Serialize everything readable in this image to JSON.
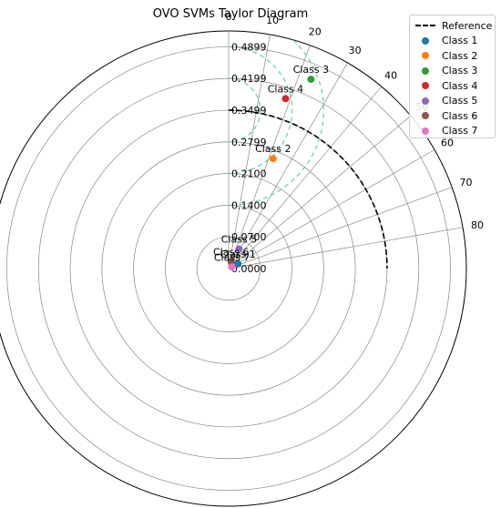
{
  "chart_data": {
    "type": "scatter",
    "subtype": "taylor-diagram",
    "title": "OVO SVMs Taylor Diagram",
    "angle_axis": {
      "quantity": "angle (degrees)",
      "range": [
        0,
        90
      ],
      "ticks": [
        "0",
        "10",
        "20",
        "30",
        "40",
        "50",
        "60",
        "70",
        "80"
      ]
    },
    "radial_axis": {
      "quantity": "standard deviation",
      "range": [
        0,
        0.525
      ],
      "ticks": [
        "0.0000",
        "0.0700",
        "0.1400",
        "0.2100",
        "0.2799",
        "0.3499",
        "0.4199",
        "0.4899"
      ],
      "tick_values": [
        0,
        0.07,
        0.14,
        0.21,
        0.2799,
        0.3499,
        0.4199,
        0.4899
      ]
    },
    "reference": {
      "name": "Reference",
      "std": 0.3499,
      "color": "#000000",
      "centered_rms_contours": [
        0.07,
        0.14,
        0.21
      ],
      "contour_color": "#5fd38d"
    },
    "grid": true,
    "legend_placement": "top-right",
    "series": [
      {
        "name": "Class 1",
        "label": "Class 1",
        "angle": 63,
        "std": 0.023,
        "color": "#1f77b4"
      },
      {
        "name": "Class 2",
        "label": "Class 2",
        "angle": 22,
        "std": 0.262,
        "color": "#ff7f0e"
      },
      {
        "name": "Class 3",
        "label": "Class 3",
        "angle": 23.5,
        "std": 0.456,
        "color": "#2ca02c"
      },
      {
        "name": "Class 4",
        "label": "Class 4",
        "angle": 18.5,
        "std": 0.396,
        "color": "#d62728"
      },
      {
        "name": "Class 5",
        "label": "Class 5",
        "angle": 28,
        "std": 0.049,
        "color": "#9467bd"
      },
      {
        "name": "Class 6",
        "label": "Class 6",
        "angle": 20,
        "std": 0.016,
        "color": "#8c564b"
      },
      {
        "name": "Class 7",
        "label": "Class 7",
        "angle": 65,
        "std": 0.008,
        "color": "#e377c2"
      }
    ]
  }
}
